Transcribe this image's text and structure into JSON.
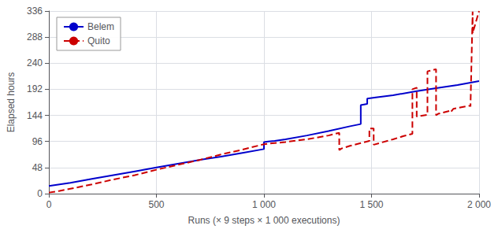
{
  "chart_data": {
    "type": "line",
    "xlabel": "Runs (× 9 steps × 1 000 executions)",
    "ylabel": "Elapsed hours",
    "xlim": [
      0,
      2000
    ],
    "ylim": [
      0,
      336
    ],
    "xticks": [
      0,
      500,
      {
        "value": 1000,
        "label": "1 000"
      },
      {
        "value": 1500,
        "label": "1 500"
      },
      {
        "value": 2000,
        "label": "2 000"
      }
    ],
    "yticks": [
      0,
      48,
      96,
      144,
      192,
      240,
      288,
      336
    ],
    "grid": true,
    "legend": "upper left",
    "series": [
      {
        "name": "Belem",
        "color": "#0000cc",
        "line_style": "solid",
        "x": [
          0,
          100,
          200,
          300,
          400,
          500,
          600,
          700,
          800,
          900,
          1000,
          1000,
          1020,
          1050,
          1100,
          1200,
          1300,
          1400,
          1450,
          1450,
          1480,
          1480,
          1520,
          1600,
          1700,
          1800,
          1900,
          2000
        ],
        "values": [
          14,
          20,
          27,
          34,
          41,
          48,
          55,
          62,
          68,
          75,
          82,
          95,
          96,
          97,
          100,
          107,
          115,
          124,
          128,
          163,
          165,
          175,
          177,
          181,
          188,
          194,
          200,
          207
        ]
      },
      {
        "name": "Quito",
        "color": "#cc0000",
        "line_style": "dashed",
        "x": [
          0,
          50,
          100,
          200,
          300,
          400,
          500,
          600,
          700,
          800,
          900,
          1000,
          1100,
          1200,
          1300,
          1350,
          1350,
          1360,
          1400,
          1450,
          1490,
          1490,
          1510,
          1510,
          1600,
          1650,
          1690,
          1690,
          1710,
          1710,
          1760,
          1760,
          1800,
          1800,
          1810,
          1810,
          1870,
          1870,
          1880,
          1880,
          1960,
          1960,
          1970,
          1970,
          2000
        ],
        "values": [
          2,
          5,
          9,
          17,
          26,
          34,
          44,
          53,
          62,
          72,
          81,
          91,
          95,
          100,
          107,
          112,
          80,
          83,
          88,
          93,
          97,
          120,
          120,
          90,
          100,
          106,
          110,
          192,
          195,
          142,
          145,
          225,
          229,
          144,
          147,
          148,
          153,
          151,
          156,
          157,
          162,
          160,
          335,
          295,
          336
        ]
      }
    ]
  }
}
